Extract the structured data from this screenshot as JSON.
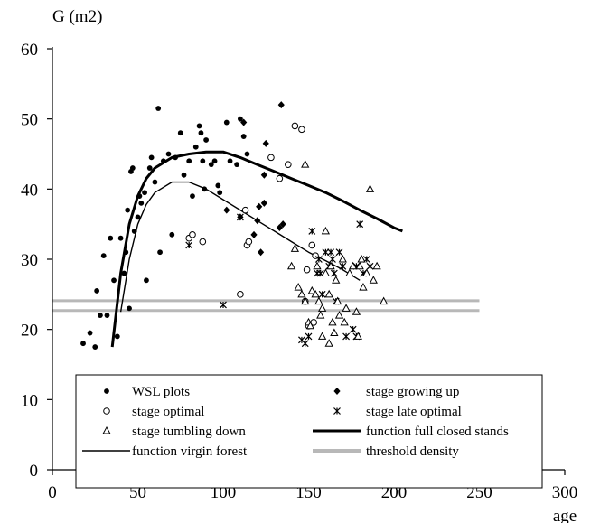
{
  "chart_data": {
    "type": "scatter",
    "ylabel": "G (m2)",
    "xlabel": "age",
    "xlim": [
      0,
      300
    ],
    "ylim": [
      0,
      60
    ],
    "xticks": [
      0,
      50,
      100,
      150,
      200,
      250,
      300
    ],
    "yticks": [
      0,
      10,
      20,
      30,
      40,
      50,
      60
    ],
    "grid": false,
    "legend_position": "bottom-center",
    "series": [
      {
        "name": "WSL plots",
        "kind": "scatter",
        "marker": "filled-circle",
        "points": [
          [
            18,
            18
          ],
          [
            22,
            19.5
          ],
          [
            25,
            17.5
          ],
          [
            26,
            25.5
          ],
          [
            28,
            22
          ],
          [
            30,
            30.5
          ],
          [
            32,
            22
          ],
          [
            34,
            33
          ],
          [
            36,
            27
          ],
          [
            38,
            19
          ],
          [
            40,
            33
          ],
          [
            42,
            28
          ],
          [
            43,
            31
          ],
          [
            44,
            37
          ],
          [
            45,
            23
          ],
          [
            46,
            42.5
          ],
          [
            47,
            43
          ],
          [
            48,
            34
          ],
          [
            50,
            36
          ],
          [
            51,
            39
          ],
          [
            52,
            38
          ],
          [
            54,
            39.5
          ],
          [
            55,
            27
          ],
          [
            57,
            43
          ],
          [
            58,
            44.5
          ],
          [
            60,
            41
          ],
          [
            62,
            51.5
          ],
          [
            63,
            31
          ],
          [
            65,
            44
          ],
          [
            68,
            45
          ],
          [
            70,
            33.5
          ],
          [
            72,
            44.5
          ],
          [
            75,
            48
          ],
          [
            77,
            42
          ],
          [
            80,
            44
          ],
          [
            82,
            39
          ],
          [
            84,
            46
          ],
          [
            86,
            49
          ],
          [
            87,
            48
          ],
          [
            88,
            44
          ],
          [
            89,
            40
          ],
          [
            90,
            47
          ],
          [
            93,
            43.5
          ],
          [
            95,
            44
          ],
          [
            97,
            40.5
          ],
          [
            98,
            39.5
          ],
          [
            102,
            49.5
          ],
          [
            104,
            44
          ],
          [
            108,
            43.5
          ],
          [
            110,
            50
          ],
          [
            112,
            47.5
          ],
          [
            114,
            45
          ]
        ]
      },
      {
        "name": "stage growing up",
        "kind": "scatter",
        "marker": "filled-diamond",
        "points": [
          [
            102,
            37
          ],
          [
            110,
            36
          ],
          [
            112,
            49.5
          ],
          [
            118,
            33.5
          ],
          [
            120,
            35.5
          ],
          [
            121,
            37.5
          ],
          [
            122,
            31
          ],
          [
            124,
            38
          ],
          [
            124,
            42
          ],
          [
            125,
            46.5
          ],
          [
            133,
            34.5
          ],
          [
            134,
            52
          ],
          [
            135,
            35
          ]
        ]
      },
      {
        "name": "stage optimal",
        "kind": "scatter",
        "marker": "open-circle",
        "points": [
          [
            80,
            33
          ],
          [
            82,
            33.5
          ],
          [
            88,
            32.5
          ],
          [
            110,
            25
          ],
          [
            113,
            37
          ],
          [
            114,
            32
          ],
          [
            115,
            32.5
          ],
          [
            128,
            44.5
          ],
          [
            133,
            41.5
          ],
          [
            138,
            43.5
          ],
          [
            142,
            49
          ],
          [
            146,
            48.5
          ],
          [
            148,
            24
          ],
          [
            149,
            28.5
          ],
          [
            150,
            20.5
          ],
          [
            152,
            32
          ],
          [
            153,
            21
          ],
          [
            154,
            30.5
          ]
        ]
      },
      {
        "name": "stage late optimal",
        "kind": "scatter",
        "marker": "asterisk",
        "points": [
          [
            80,
            32
          ],
          [
            100,
            23.5
          ],
          [
            110,
            36
          ],
          [
            146,
            18.5
          ],
          [
            148,
            18
          ],
          [
            150,
            19
          ],
          [
            152,
            34
          ],
          [
            155,
            28
          ],
          [
            156,
            30
          ],
          [
            157,
            28
          ],
          [
            158,
            25
          ],
          [
            160,
            31
          ],
          [
            162,
            29
          ],
          [
            163,
            31
          ],
          [
            164,
            30
          ],
          [
            165,
            28
          ],
          [
            166,
            24
          ],
          [
            168,
            31
          ],
          [
            170,
            29
          ],
          [
            172,
            19
          ],
          [
            176,
            20
          ],
          [
            178,
            29
          ],
          [
            180,
            35
          ],
          [
            182,
            28
          ],
          [
            184,
            30
          ],
          [
            186,
            29
          ],
          [
            178,
            19
          ]
        ]
      },
      {
        "name": "stage tumbling down",
        "kind": "scatter",
        "marker": "open-triangle",
        "points": [
          [
            140,
            29
          ],
          [
            142,
            31.5
          ],
          [
            144,
            26
          ],
          [
            146,
            25
          ],
          [
            148,
            24
          ],
          [
            148,
            43.5
          ],
          [
            150,
            21
          ],
          [
            151,
            20.5
          ],
          [
            152,
            25.5
          ],
          [
            154,
            25
          ],
          [
            155,
            29
          ],
          [
            156,
            24
          ],
          [
            157,
            22
          ],
          [
            158,
            23
          ],
          [
            158,
            19
          ],
          [
            160,
            34
          ],
          [
            160,
            28
          ],
          [
            162,
            25
          ],
          [
            162,
            18
          ],
          [
            163,
            29
          ],
          [
            164,
            21
          ],
          [
            165,
            19.5
          ],
          [
            166,
            27
          ],
          [
            167,
            24
          ],
          [
            168,
            22
          ],
          [
            170,
            30
          ],
          [
            171,
            21
          ],
          [
            172,
            23
          ],
          [
            174,
            28
          ],
          [
            176,
            29
          ],
          [
            178,
            22.5
          ],
          [
            179,
            19
          ],
          [
            180,
            29
          ],
          [
            181,
            30
          ],
          [
            182,
            26
          ],
          [
            184,
            28
          ],
          [
            186,
            40
          ],
          [
            188,
            27
          ],
          [
            190,
            29
          ],
          [
            194,
            24
          ]
        ]
      },
      {
        "name": "function full closed stands",
        "kind": "line",
        "style": "thick",
        "points": [
          [
            35,
            17.5
          ],
          [
            40,
            28
          ],
          [
            45,
            35
          ],
          [
            50,
            39
          ],
          [
            55,
            41.5
          ],
          [
            60,
            43
          ],
          [
            70,
            44.5
          ],
          [
            80,
            45
          ],
          [
            90,
            45.3
          ],
          [
            100,
            45.3
          ],
          [
            110,
            44.5
          ],
          [
            120,
            43.5
          ],
          [
            130,
            42.5
          ],
          [
            140,
            41.5
          ],
          [
            150,
            40.5
          ],
          [
            160,
            39.5
          ],
          [
            170,
            38.3
          ],
          [
            180,
            37
          ],
          [
            190,
            35.8
          ],
          [
            200,
            34.5
          ],
          [
            205,
            34
          ]
        ]
      },
      {
        "name": "function virgin forest",
        "kind": "line",
        "style": "thin",
        "points": [
          [
            40,
            22.5
          ],
          [
            45,
            30
          ],
          [
            50,
            35
          ],
          [
            55,
            37.8
          ],
          [
            60,
            39.5
          ],
          [
            70,
            41
          ],
          [
            80,
            41
          ],
          [
            90,
            40
          ],
          [
            100,
            38.5
          ],
          [
            110,
            37
          ],
          [
            120,
            35.5
          ],
          [
            130,
            34
          ],
          [
            140,
            32.5
          ],
          [
            150,
            31
          ],
          [
            160,
            29.8
          ],
          [
            170,
            28.5
          ],
          [
            180,
            27
          ]
        ]
      },
      {
        "name": "threshold density",
        "kind": "band",
        "y": [
          22.7,
          24.1
        ],
        "x": [
          0,
          250
        ]
      }
    ]
  },
  "colors": {
    "ink": "#000000",
    "threshold": "#b8b8b8",
    "background": "#ffffff"
  }
}
